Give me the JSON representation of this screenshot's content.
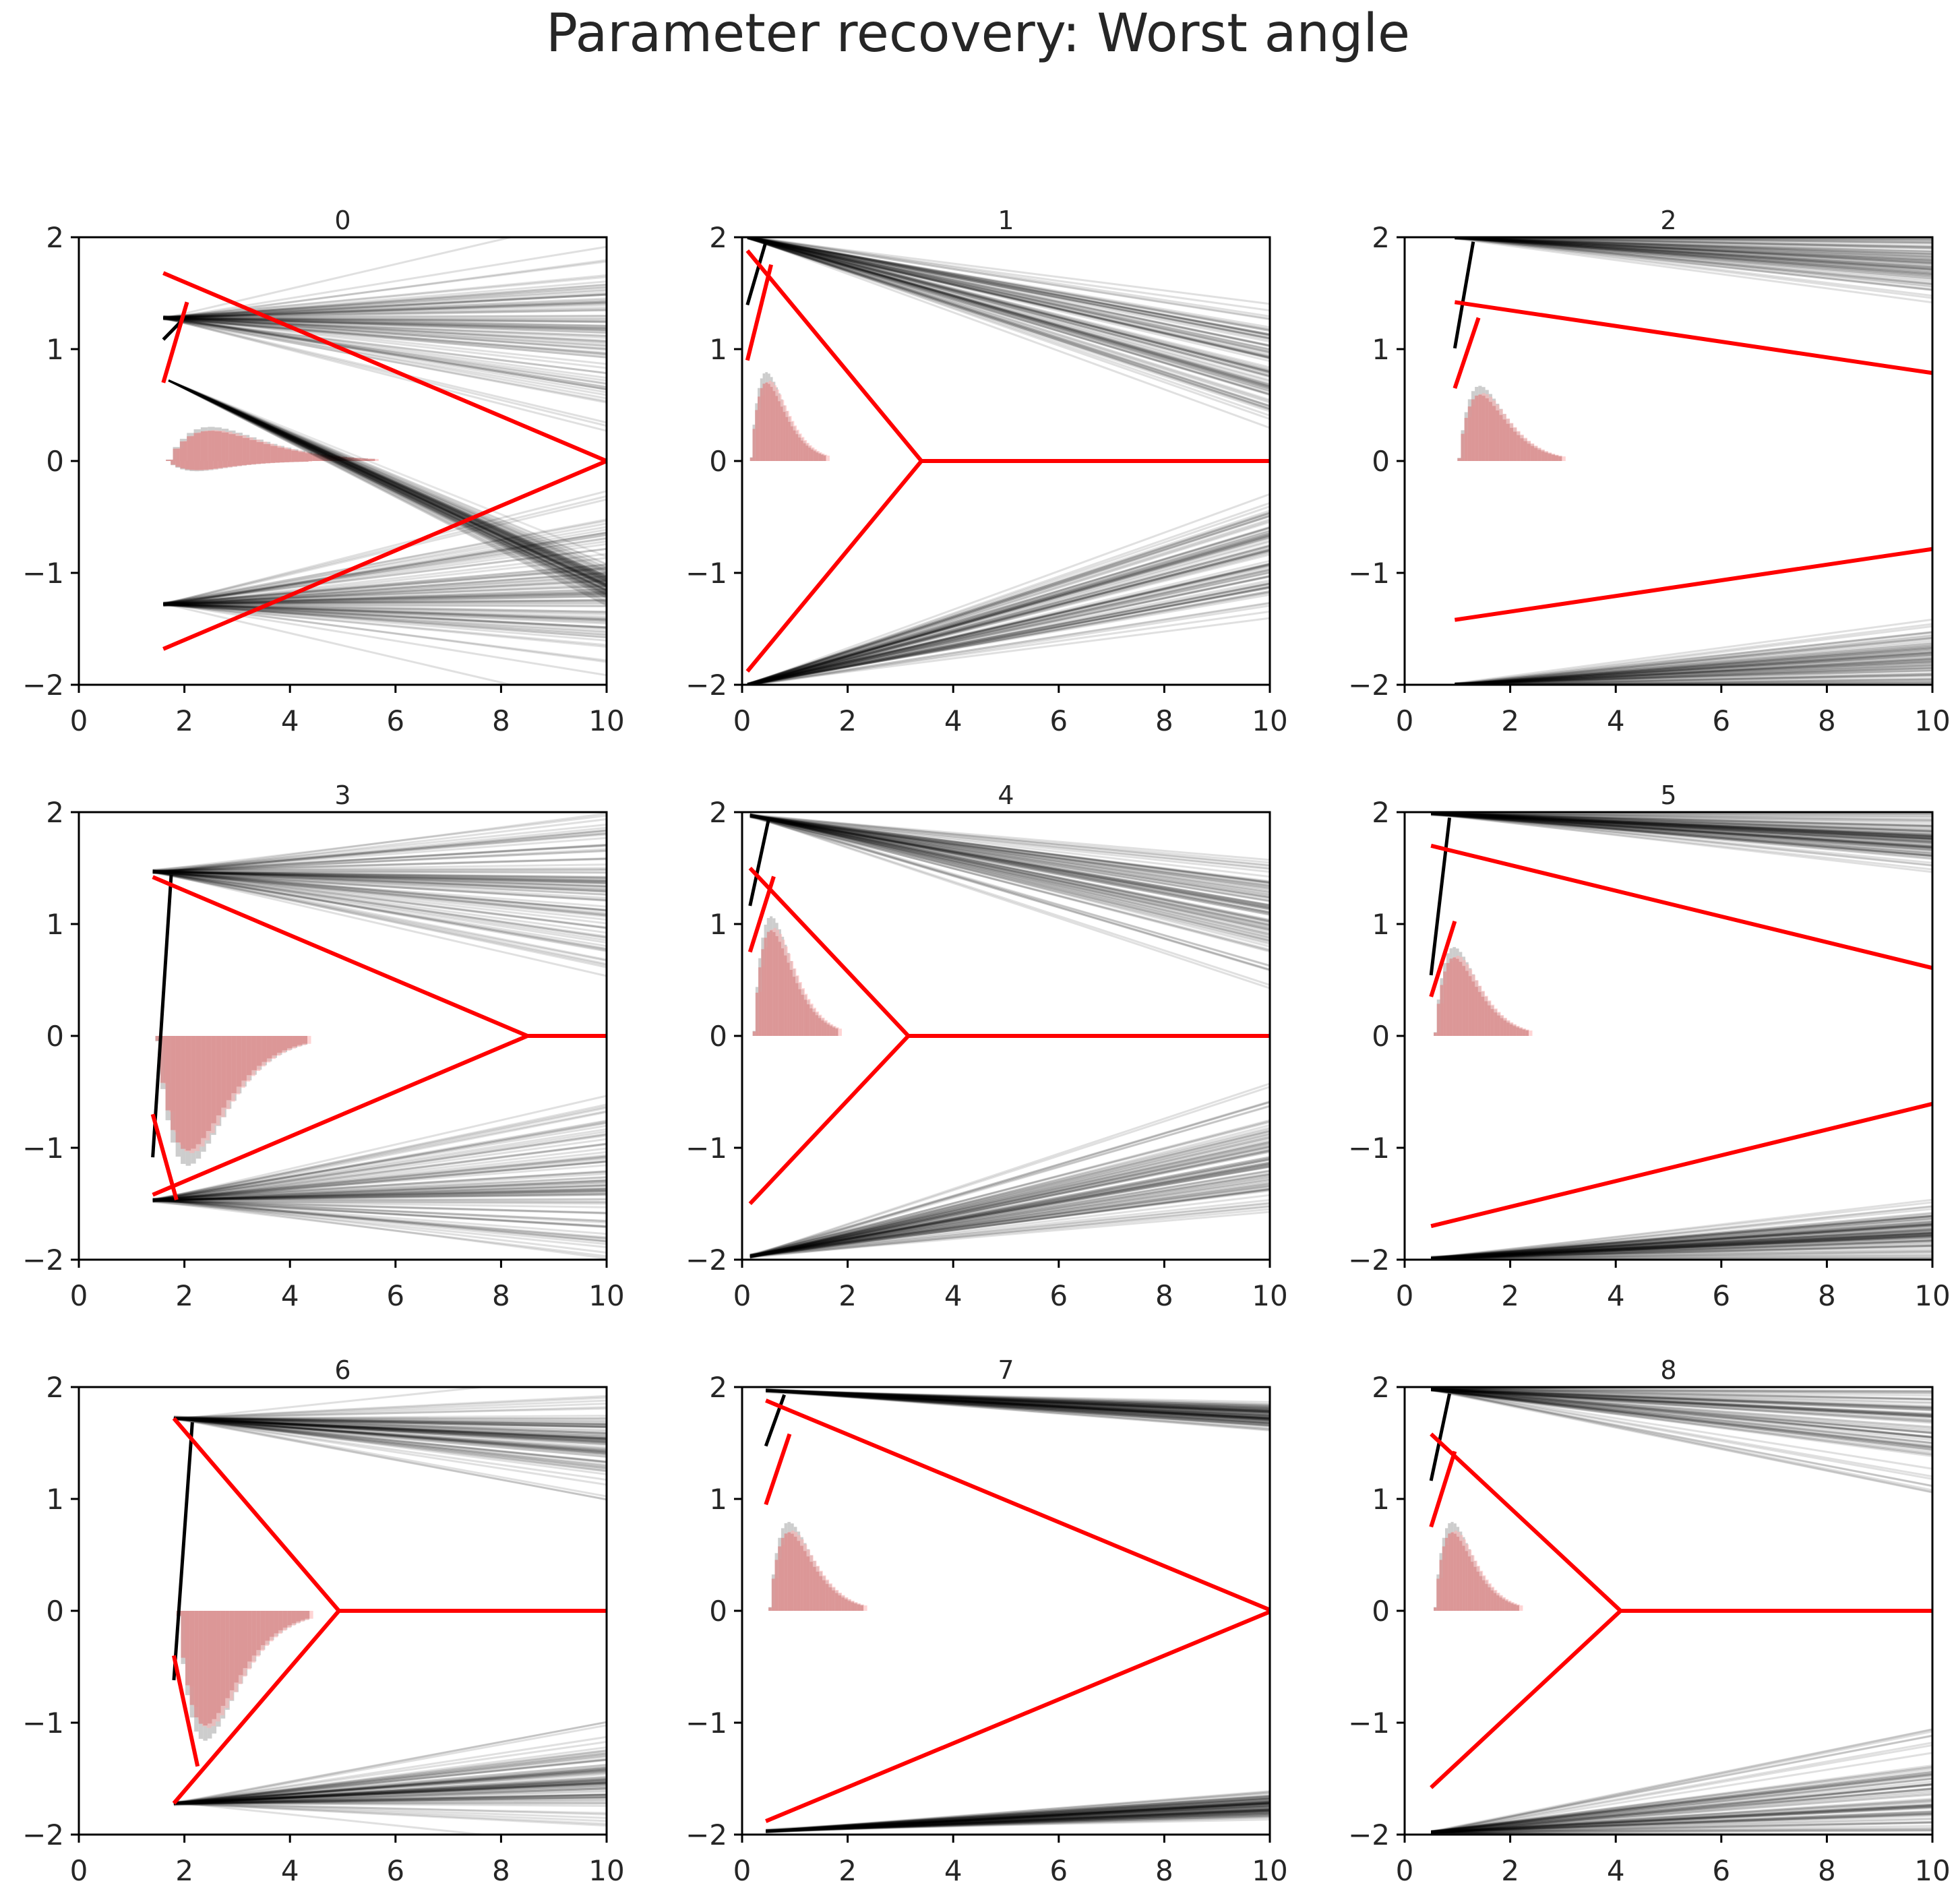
{
  "title": "Parameter recovery: Worst angle",
  "colors": {
    "posterior": "#000000",
    "truth": "#ff0000",
    "hist_data": "#c8c8c8",
    "hist_sim": "#d99090",
    "axis": "#000000",
    "text": "#262626"
  },
  "chart_data": [
    {
      "type": "line",
      "title": "0",
      "xlim": [
        0,
        10
      ],
      "ylim": [
        -2,
        2
      ],
      "xticks": [
        0,
        2,
        4,
        6,
        8,
        10
      ],
      "yticks": [
        -2,
        -1,
        0,
        1,
        2
      ],
      "truth": {
        "t": 1.6,
        "a0": 1.68,
        "theta": -0.2,
        "v": 1.6,
        "z": 0.7
      },
      "posterior": {
        "t": 1.6,
        "a0": 1.28,
        "theta": -0.02,
        "spread": 0.08,
        "lower_a0": -1.28
      },
      "extra_lines": {
        "from": [
          1.7,
          0.72
        ],
        "to": [
          10,
          -1.1
        ],
        "spread": 0.5
      },
      "hist": {
        "upper_peak": 0.5,
        "upper_width": 2.2,
        "lower_peak": 0.15,
        "lower_width": 1.5,
        "dip": true
      }
    },
    {
      "type": "line",
      "title": "1",
      "xlim": [
        0,
        10
      ],
      "ylim": [
        -2,
        2
      ],
      "xticks": [
        0,
        2,
        4,
        6,
        8,
        10
      ],
      "yticks": [
        -2,
        -1,
        0,
        1,
        2
      ],
      "truth": {
        "t": 0.1,
        "a0": 1.88,
        "theta": -0.57,
        "v": 1.9,
        "z": 0.9
      },
      "posterior": {
        "t": 0.1,
        "a0": 2.0,
        "theta": -0.12,
        "spread": 0.05,
        "lower_a0": -2.0
      },
      "hist": {
        "upper_peak": 1.3,
        "upper_width": 0.8
      }
    },
    {
      "type": "line",
      "title": "2",
      "xlim": [
        0,
        10
      ],
      "ylim": [
        -2,
        2
      ],
      "xticks": [
        0,
        2,
        4,
        6,
        8,
        10
      ],
      "yticks": [
        -2,
        -1,
        0,
        1,
        2
      ],
      "truth": {
        "t": 0.95,
        "a0": 1.42,
        "theta": -0.07,
        "v": 1.4,
        "z": 0.65
      },
      "posterior": {
        "t": 0.95,
        "a0": 2.0,
        "theta": -0.025,
        "spread": 0.035,
        "lower_a0": -2.0
      },
      "hist": {
        "upper_peak": 1.1,
        "upper_width": 1.1
      }
    },
    {
      "type": "line",
      "title": "3",
      "xlim": [
        0,
        10
      ],
      "ylim": [
        -2,
        2
      ],
      "xticks": [
        0,
        2,
        4,
        6,
        8,
        10
      ],
      "yticks": [
        -2,
        -1,
        0,
        1,
        2
      ],
      "truth": {
        "t": 1.4,
        "a0": 1.42,
        "theta": -0.2,
        "v": -1.7,
        "z": -0.7
      },
      "posterior": {
        "t": 1.4,
        "a0": 1.47,
        "theta": -0.02,
        "spread": 0.07,
        "lower_a0": -1.47
      },
      "hist": {
        "lower_peak": 1.9,
        "lower_width": 1.6
      }
    },
    {
      "type": "line",
      "title": "4",
      "xlim": [
        0,
        10
      ],
      "ylim": [
        -2,
        2
      ],
      "xticks": [
        0,
        2,
        4,
        6,
        8,
        10
      ],
      "yticks": [
        -2,
        -1,
        0,
        1,
        2
      ],
      "truth": {
        "t": 0.15,
        "a0": 1.5,
        "theta": -0.5,
        "v": 1.5,
        "z": 0.75
      },
      "posterior": {
        "t": 0.15,
        "a0": 1.97,
        "theta": -0.09,
        "spread": 0.05,
        "lower_a0": -1.97
      },
      "hist": {
        "upper_peak": 1.75,
        "upper_width": 0.9
      }
    },
    {
      "type": "line",
      "title": "5",
      "xlim": [
        0,
        10
      ],
      "ylim": [
        -2,
        2
      ],
      "xticks": [
        0,
        2,
        4,
        6,
        8,
        10
      ],
      "yticks": [
        -2,
        -1,
        0,
        1,
        2
      ],
      "truth": {
        "t": 0.5,
        "a0": 1.7,
        "theta": -0.115,
        "v": 1.5,
        "z": 0.35
      },
      "posterior": {
        "t": 0.5,
        "a0": 1.99,
        "theta": -0.023,
        "spread": 0.02,
        "lower_a0": -1.99
      },
      "hist": {
        "upper_peak": 1.3,
        "upper_width": 1.0
      }
    },
    {
      "type": "line",
      "title": "6",
      "xlim": [
        0,
        10
      ],
      "ylim": [
        -2,
        2
      ],
      "xticks": [
        0,
        2,
        4,
        6,
        8,
        10
      ],
      "yticks": [
        -2,
        -1,
        0,
        1,
        2
      ],
      "truth": {
        "t": 1.8,
        "a0": 1.72,
        "theta": -0.55,
        "v": -2.2,
        "z": -0.4
      },
      "posterior": {
        "t": 1.8,
        "a0": 1.72,
        "theta": -0.025,
        "spread": 0.04,
        "lower_a0": -1.72
      },
      "hist": {
        "lower_peak": 1.9,
        "lower_width": 1.4
      }
    },
    {
      "type": "line",
      "title": "7",
      "xlim": [
        0,
        10
      ],
      "ylim": [
        -2,
        2
      ],
      "xticks": [
        0,
        2,
        4,
        6,
        8,
        10
      ],
      "yticks": [
        -2,
        -1,
        0,
        1,
        2
      ],
      "truth": {
        "t": 0.45,
        "a0": 1.88,
        "theta": -0.196,
        "v": 1.4,
        "z": 0.95
      },
      "posterior": {
        "t": 0.45,
        "a0": 1.97,
        "theta": -0.024,
        "spread": 0.01,
        "lower_a0": -1.97
      },
      "hist": {
        "upper_peak": 1.3,
        "upper_width": 1.0
      }
    },
    {
      "type": "line",
      "title": "8",
      "xlim": [
        0,
        10
      ],
      "ylim": [
        -2,
        2
      ],
      "xticks": [
        0,
        2,
        4,
        6,
        8,
        10
      ],
      "yticks": [
        -2,
        -1,
        0,
        1,
        2
      ],
      "truth": {
        "t": 0.5,
        "a0": 1.58,
        "theta": -0.44,
        "v": 1.5,
        "z": 0.75
      },
      "posterior": {
        "t": 0.5,
        "a0": 1.98,
        "theta": -0.03,
        "spread": 0.05,
        "lower_a0": -1.98
      },
      "hist": {
        "upper_peak": 1.3,
        "upper_width": 0.9
      }
    }
  ]
}
